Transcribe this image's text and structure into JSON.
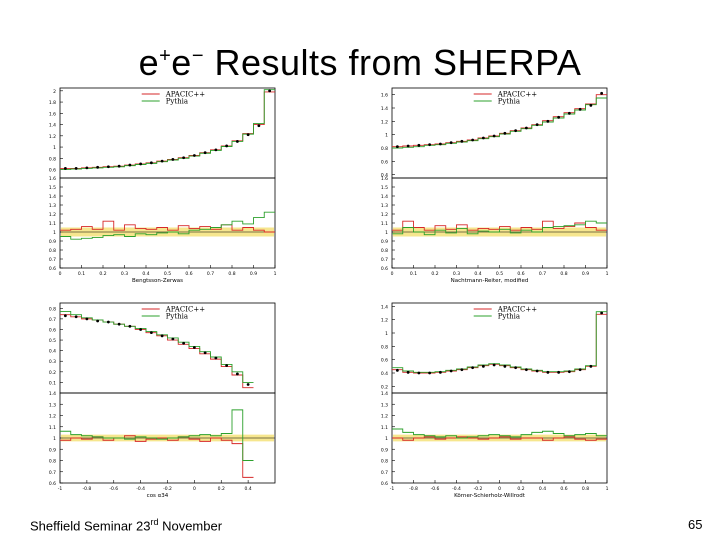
{
  "title": {
    "pre": "e",
    "sup1": "+",
    "mid": "e",
    "sup2": "−",
    "rest": " Results from SHERPA"
  },
  "footer": {
    "prefix": "Sheffield Seminar 23",
    "sup": "rd",
    "suffix": " November",
    "page": "65"
  },
  "colors": {
    "apacic": "#d62728",
    "pythia": "#2ca02c",
    "data": "#000000",
    "band": "#f5e27a"
  },
  "chart_data": [
    {
      "type": "line",
      "id": "bengtsson-zerwas",
      "legend": [
        "APACIC++",
        "Pythia"
      ],
      "xlabel": "Bengtsson-Zerwas",
      "x_ticks": [
        "0",
        "0.1",
        "0.2",
        "0.3",
        "0.4",
        "0.5",
        "0.6",
        "0.7",
        "0.8",
        "0.9",
        "1"
      ],
      "x_range": [
        0,
        1
      ],
      "top_ylim": [
        0.45,
        2.05
      ],
      "top_yticks": [
        "2",
        "1.8",
        "1.6",
        "1.4",
        "1.2",
        "1",
        "0.8",
        "0.6"
      ],
      "ratio_ylim": [
        0.6,
        1.6
      ],
      "ratio_yticks": [
        "1.6",
        "1.5",
        "1.4",
        "1.3",
        "1.2",
        "1.1",
        "1",
        "0.9",
        "0.8",
        "0.7",
        "0.6"
      ],
      "x": [
        0.025,
        0.075,
        0.125,
        0.175,
        0.225,
        0.275,
        0.325,
        0.375,
        0.425,
        0.475,
        0.525,
        0.575,
        0.625,
        0.675,
        0.725,
        0.775,
        0.825,
        0.875,
        0.925,
        0.975
      ],
      "series": [
        {
          "name": "Data",
          "values": [
            0.62,
            0.62,
            0.63,
            0.64,
            0.65,
            0.66,
            0.68,
            0.7,
            0.72,
            0.75,
            0.78,
            0.81,
            0.85,
            0.9,
            0.95,
            1.02,
            1.1,
            1.22,
            1.38,
            2.0
          ]
        },
        {
          "name": "APACIC++",
          "values": [
            0.62,
            0.62,
            0.63,
            0.64,
            0.65,
            0.66,
            0.68,
            0.7,
            0.72,
            0.75,
            0.78,
            0.81,
            0.85,
            0.9,
            0.95,
            1.02,
            1.11,
            1.24,
            1.4,
            1.98
          ]
        },
        {
          "name": "Pythia",
          "values": [
            0.6,
            0.61,
            0.62,
            0.63,
            0.64,
            0.65,
            0.67,
            0.69,
            0.71,
            0.74,
            0.77,
            0.8,
            0.84,
            0.89,
            0.94,
            1.01,
            1.1,
            1.23,
            1.42,
            2.02
          ]
        }
      ],
      "ratio_series": [
        {
          "name": "APACIC++",
          "values": [
            1.02,
            1.03,
            1.06,
            1.03,
            1.12,
            1.02,
            1.08,
            1.04,
            1.03,
            1.05,
            1.02,
            1.07,
            1.04,
            1.06,
            1.03,
            1.08,
            1.02,
            1.05,
            1.02,
            1.0
          ]
        },
        {
          "name": "Pythia",
          "values": [
            0.95,
            0.92,
            0.93,
            0.94,
            0.96,
            0.97,
            0.95,
            0.98,
            0.97,
            0.99,
            1.0,
            0.98,
            1.02,
            1.03,
            1.05,
            1.08,
            1.12,
            1.09,
            1.16,
            1.22
          ]
        }
      ],
      "band": [
        0.95,
        1.05
      ]
    },
    {
      "type": "line",
      "id": "nachtmann-reiter",
      "legend": [
        "APACIC++",
        "Pythia"
      ],
      "xlabel": "Nachtmann-Reiter, modified",
      "x_ticks": [
        "0",
        "0.1",
        "0.2",
        "0.3",
        "0.4",
        "0.5",
        "0.6",
        "0.7",
        "0.8",
        "0.9",
        "1"
      ],
      "x_range": [
        0,
        1
      ],
      "top_ylim": [
        0.35,
        1.7
      ],
      "top_yticks": [
        "1.6",
        "1.4",
        "1.2",
        "1",
        "0.8",
        "0.6",
        "0.4"
      ],
      "ratio_ylim": [
        0.6,
        1.6
      ],
      "ratio_yticks": [
        "1.6",
        "1.5",
        "1.4",
        "1.3",
        "1.2",
        "1.1",
        "1",
        "0.9",
        "0.8",
        "0.7",
        "0.6"
      ],
      "x": [
        0.025,
        0.075,
        0.125,
        0.175,
        0.225,
        0.275,
        0.325,
        0.375,
        0.425,
        0.475,
        0.525,
        0.575,
        0.625,
        0.675,
        0.725,
        0.775,
        0.825,
        0.875,
        0.925,
        0.975
      ],
      "series": [
        {
          "name": "Data",
          "values": [
            0.82,
            0.83,
            0.84,
            0.85,
            0.86,
            0.88,
            0.9,
            0.92,
            0.95,
            0.98,
            1.02,
            1.06,
            1.1,
            1.15,
            1.2,
            1.26,
            1.32,
            1.38,
            1.44,
            1.62
          ]
        },
        {
          "name": "APACIC++",
          "values": [
            0.82,
            0.83,
            0.84,
            0.85,
            0.86,
            0.88,
            0.9,
            0.92,
            0.95,
            0.98,
            1.02,
            1.06,
            1.1,
            1.15,
            1.21,
            1.27,
            1.33,
            1.39,
            1.46,
            1.6
          ]
        },
        {
          "name": "Pythia",
          "values": [
            0.8,
            0.81,
            0.82,
            0.84,
            0.85,
            0.87,
            0.89,
            0.91,
            0.94,
            0.97,
            1.01,
            1.05,
            1.09,
            1.14,
            1.19,
            1.25,
            1.31,
            1.37,
            1.45,
            1.55
          ]
        }
      ],
      "ratio_series": [
        {
          "name": "APACIC++",
          "values": [
            1.02,
            1.12,
            1.05,
            1.02,
            1.07,
            1.03,
            1.08,
            1.02,
            1.04,
            1.03,
            1.06,
            1.02,
            1.05,
            1.03,
            1.12,
            1.04,
            1.06,
            1.1,
            1.05,
            1.02
          ]
        },
        {
          "name": "Pythia",
          "values": [
            0.98,
            1.05,
            1.0,
            0.97,
            1.02,
            0.99,
            1.04,
            0.98,
            1.01,
            1.0,
            1.03,
            0.99,
            1.02,
            1.0,
            1.05,
            1.06,
            1.07,
            1.08,
            1.12,
            1.1
          ]
        }
      ],
      "band": [
        0.95,
        1.05
      ]
    },
    {
      "type": "line",
      "id": "cos-alpha34",
      "legend": [
        "APACIC++",
        "Pythia"
      ],
      "xlabel": "cos α34",
      "x_ticks": [
        "-1",
        "-0.8",
        "-0.6",
        "-0.4",
        "-0.2",
        "0",
        "0.2",
        "0.4"
      ],
      "x_range": [
        -1,
        0.6
      ],
      "top_ylim": [
        0.0,
        0.85
      ],
      "top_yticks": [
        "0.8",
        "0.7",
        "0.6",
        "0.5",
        "0.4",
        "0.3",
        "0.2",
        "0.1"
      ],
      "ratio_ylim": [
        0.6,
        1.4
      ],
      "ratio_yticks": [
        "1.4",
        "1.3",
        "1.2",
        "1.1",
        "1",
        "0.9",
        "0.8",
        "0.7",
        "0.6"
      ],
      "x": [
        -0.96,
        -0.88,
        -0.8,
        -0.72,
        -0.64,
        -0.56,
        -0.48,
        -0.4,
        -0.32,
        -0.24,
        -0.16,
        -0.08,
        0.0,
        0.08,
        0.16,
        0.24,
        0.32,
        0.4
      ],
      "series": [
        {
          "name": "Data",
          "values": [
            0.73,
            0.72,
            0.7,
            0.68,
            0.67,
            0.65,
            0.63,
            0.6,
            0.57,
            0.54,
            0.51,
            0.47,
            0.43,
            0.38,
            0.33,
            0.26,
            0.18,
            0.08
          ]
        },
        {
          "name": "APACIC++",
          "values": [
            0.74,
            0.72,
            0.7,
            0.69,
            0.67,
            0.65,
            0.63,
            0.6,
            0.57,
            0.54,
            0.5,
            0.46,
            0.42,
            0.37,
            0.32,
            0.25,
            0.17,
            0.05
          ]
        },
        {
          "name": "Pythia",
          "values": [
            0.77,
            0.74,
            0.71,
            0.69,
            0.67,
            0.65,
            0.63,
            0.61,
            0.58,
            0.55,
            0.52,
            0.48,
            0.44,
            0.39,
            0.34,
            0.27,
            0.2,
            0.1
          ]
        }
      ],
      "ratio_series": [
        {
          "name": "APACIC++",
          "values": [
            0.98,
            1.0,
            0.99,
            1.01,
            0.98,
            1.0,
            1.02,
            0.97,
            0.99,
            1.0,
            0.98,
            1.01,
            0.99,
            0.97,
            1.0,
            0.98,
            0.95,
            0.65
          ]
        },
        {
          "name": "Pythia",
          "values": [
            1.06,
            1.03,
            1.02,
            1.01,
            1.0,
            1.0,
            0.99,
            1.01,
            1.0,
            0.99,
            1.0,
            1.01,
            1.02,
            1.03,
            1.02,
            1.04,
            1.25,
            0.8
          ]
        }
      ],
      "band": [
        0.97,
        1.03
      ]
    },
    {
      "type": "line",
      "id": "korner-schierholz-willrodt",
      "legend": [
        "APACIC++",
        "Pythia"
      ],
      "xlabel": "Körner-Schierholz-Willrodt",
      "x_ticks": [
        "-1",
        "-0.8",
        "-0.6",
        "-0.4",
        "-0.2",
        "0",
        "0.2",
        "0.4",
        "0.6",
        "0.8",
        "1"
      ],
      "x_range": [
        -1,
        1
      ],
      "top_ylim": [
        0.1,
        1.45
      ],
      "top_yticks": [
        "1.4",
        "1.2",
        "1",
        "0.8",
        "0.6",
        "0.4",
        "0.2"
      ],
      "ratio_ylim": [
        0.6,
        1.4
      ],
      "ratio_yticks": [
        "1.4",
        "1.3",
        "1.2",
        "1.1",
        "1",
        "0.9",
        "0.8",
        "0.7",
        "0.6"
      ],
      "x": [
        -0.95,
        -0.85,
        -0.75,
        -0.65,
        -0.55,
        -0.45,
        -0.35,
        -0.25,
        -0.15,
        -0.05,
        0.05,
        0.15,
        0.25,
        0.35,
        0.45,
        0.55,
        0.65,
        0.75,
        0.85,
        0.95
      ],
      "series": [
        {
          "name": "Data",
          "values": [
            0.44,
            0.41,
            0.4,
            0.4,
            0.41,
            0.43,
            0.45,
            0.48,
            0.5,
            0.52,
            0.5,
            0.48,
            0.45,
            0.43,
            0.41,
            0.41,
            0.42,
            0.45,
            0.5,
            1.3
          ]
        },
        {
          "name": "APACIC++",
          "values": [
            0.45,
            0.41,
            0.4,
            0.4,
            0.41,
            0.43,
            0.45,
            0.48,
            0.51,
            0.53,
            0.51,
            0.48,
            0.45,
            0.43,
            0.41,
            0.41,
            0.42,
            0.45,
            0.5,
            1.28
          ]
        },
        {
          "name": "Pythia",
          "values": [
            0.48,
            0.43,
            0.41,
            0.41,
            0.42,
            0.44,
            0.46,
            0.49,
            0.52,
            0.54,
            0.52,
            0.49,
            0.46,
            0.44,
            0.42,
            0.42,
            0.43,
            0.46,
            0.51,
            1.32
          ]
        }
      ],
      "ratio_series": [
        {
          "name": "APACIC++",
          "values": [
            1.0,
            0.98,
            1.0,
            1.01,
            0.99,
            1.0,
            1.01,
            1.0,
            0.99,
            1.0,
            1.01,
            0.99,
            1.0,
            1.0,
            0.98,
            1.0,
            1.01,
            0.99,
            0.98,
            0.99
          ]
        },
        {
          "name": "Pythia",
          "values": [
            1.08,
            1.05,
            1.03,
            1.02,
            1.01,
            1.02,
            1.0,
            1.01,
            1.02,
            1.03,
            1.02,
            1.01,
            1.03,
            1.05,
            1.06,
            1.04,
            1.02,
            1.03,
            1.04,
            1.02
          ]
        }
      ],
      "band": [
        0.97,
        1.03
      ]
    }
  ]
}
